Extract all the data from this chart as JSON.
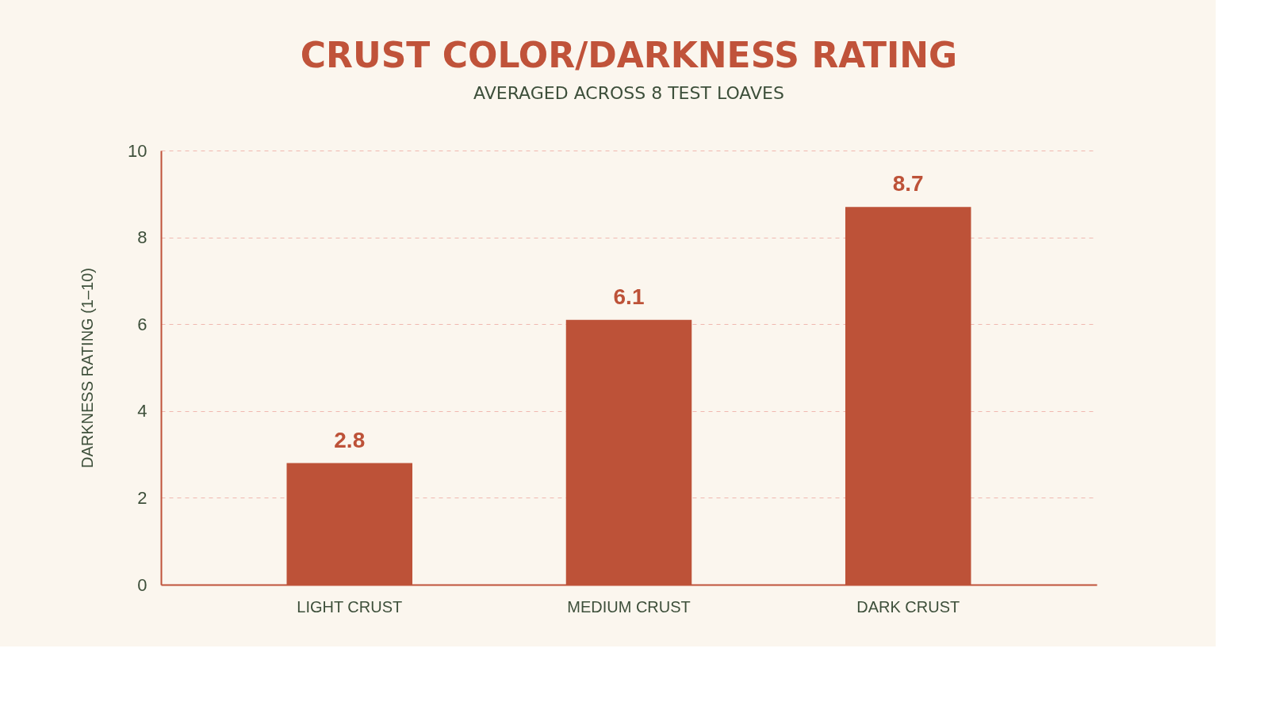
{
  "chart_data": {
    "type": "bar",
    "title": "CRUST COLOR/DARKNESS RATING",
    "subtitle": "AVERAGED ACROSS 8 TEST LOAVES",
    "ylabel": "DARKNESS RATING (1–10)",
    "categories": [
      "LIGHT CRUST",
      "MEDIUM CRUST",
      "DARK CRUST"
    ],
    "values": [
      2.8,
      6.1,
      8.7
    ],
    "color": "#bd5238",
    "ylim": [
      0,
      10
    ],
    "yticks": [
      0,
      2,
      4,
      6,
      8,
      10
    ],
    "grid": "y",
    "data_labels": true
  }
}
